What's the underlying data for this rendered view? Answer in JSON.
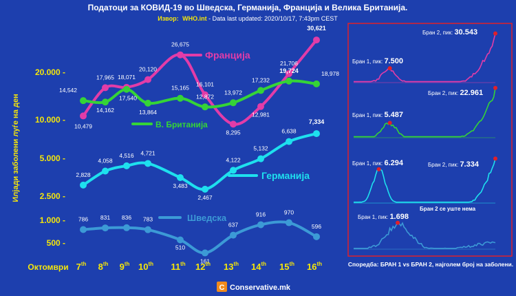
{
  "header": {
    "title": "Податоци за КОВИД-19 во Шведска, Германија, Франција и Велика Британија.",
    "source_label": "Извор:",
    "source_site": "WHO.int",
    "source_rest": " - Data last updated: 2020/10/17, 7:43pm CEST"
  },
  "footer": {
    "brand": "Conservative.mk",
    "logo_letter": "C"
  },
  "colors": {
    "background": "#1d3fae",
    "france": "#e23ca8",
    "uk": "#35d437",
    "germany": "#1ee0ee",
    "sweden": "#3c9ad6",
    "axis_yellow": "#f5e60a"
  },
  "chart_data": [
    {
      "type": "line",
      "ylabel": "Илјади заболени луѓе на ден",
      "xlabel": "Октомври",
      "categories": [
        "7",
        "8",
        "9",
        "10",
        "11",
        "12",
        "13",
        "14",
        "15",
        "16"
      ],
      "category_suffix": "th",
      "yticks": [
        "20.000 -",
        "10.000 -",
        "5.000 -",
        "2.500 -",
        "1.000 -",
        "500 -"
      ],
      "series": [
        {
          "name": "Франција",
          "key": "france",
          "values": [
            10479,
            17965,
            18071,
            20120,
            26675,
            16101,
            8295,
            12981,
            21706,
            30621
          ],
          "labels": [
            "10,479",
            "17,965",
            "18,071",
            "20,120",
            "26,675",
            "16,101",
            "8,295",
            "12,981",
            "21,706",
            "30,621"
          ]
        },
        {
          "name": "В. Британија",
          "key": "uk",
          "values": [
            14542,
            14162,
            17540,
            13864,
            15165,
            12872,
            13972,
            17232,
            19724,
            18978
          ],
          "labels": [
            "14,542",
            "14,162",
            "17,540",
            "13,864",
            "15,165",
            "12,872",
            "13,972",
            "17,232",
            "19,724",
            "18,978"
          ]
        },
        {
          "name": "Германија",
          "key": "germany",
          "values": [
            2828,
            4058,
            4516,
            4721,
            3483,
            2467,
            4122,
            5132,
            6638,
            7334
          ],
          "labels": [
            "2,828",
            "4,058",
            "4,516",
            "4,721",
            "3,483",
            "2,467",
            "4,122",
            "5,132",
            "6,638",
            "7,334"
          ]
        },
        {
          "name": "Шведска",
          "key": "sweden",
          "values": [
            786,
            831,
            836,
            783,
            510,
            161,
            637,
            916,
            970,
            596
          ],
          "labels": [
            "786",
            "831",
            "836",
            "783",
            "510",
            "161",
            "637",
            "916",
            "970",
            "596"
          ]
        }
      ]
    },
    {
      "type": "line",
      "title": "Споредба: БРАН 1 vs БРАН 2, најголем број на заболени.",
      "panels": [
        {
          "key": "france",
          "wave1_label": "Бран 1, пик:",
          "wave1_value": "7.500",
          "wave2_label": "Бран 2, пик:",
          "wave2_value": "30.543"
        },
        {
          "key": "uk",
          "wave1_label": "Бран 1, пик:",
          "wave1_value": "5.487",
          "wave2_label": "Бран 2, пик:",
          "wave2_value": "22.961"
        },
        {
          "key": "germany",
          "wave1_label": "Бран 1, пик:",
          "wave1_value": "6.294",
          "wave2_label": "Бран 2, пик:",
          "wave2_value": "7.334"
        },
        {
          "key": "sweden",
          "wave1_label": "Бран 1, пик:",
          "wave1_value": "1.698",
          "wave2_label": "Бран 2 се уште нема",
          "wave2_value": ""
        }
      ]
    }
  ]
}
